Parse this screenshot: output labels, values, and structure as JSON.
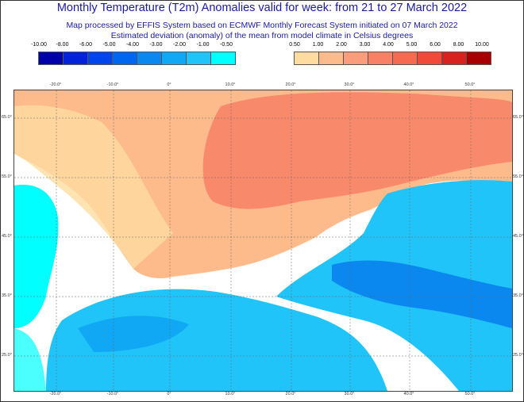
{
  "title": "Monthly Temperature (T2m) Anomalies valid for week: from 21 to 27 March 2022",
  "subtitle1": "Map processed by EFFIS System based on ECMWF Monthly Forecast System initiated on 07 March 2022",
  "subtitle2": "Estimated deviation (anomaly) of the mean from model climate in Celsius degrees",
  "legend_cold": {
    "labels": [
      "-10.00",
      "-8.00",
      "-6.00",
      "-5.00",
      "-4.00",
      "-3.00",
      "-2.00",
      "-1.00",
      "-0.50"
    ],
    "colors": [
      "#0000a8",
      "#0022d8",
      "#0044ee",
      "#0066f0",
      "#0a88f0",
      "#10a8f4",
      "#20c4f8",
      "#00ffff"
    ]
  },
  "legend_warm": {
    "labels": [
      "0.50",
      "1.00",
      "2.00",
      "3.00",
      "4.00",
      "5.00",
      "6.00",
      "8.00",
      "10.00"
    ],
    "colors": [
      "#fedca0",
      "#fdbb8c",
      "#fb9c7a",
      "#f88065",
      "#f66a50",
      "#f24a38",
      "#d8221e",
      "#a80000"
    ]
  },
  "lon_ticks": [
    "-20.0°",
    "-10.0°",
    "0°",
    "10.0°",
    "20.0°",
    "30.0°",
    "40.0°",
    "50.0°"
  ],
  "lat_ticks": [
    "65.0°",
    "55.0°",
    "45.0°",
    "35.0°",
    "25.0°"
  ]
}
